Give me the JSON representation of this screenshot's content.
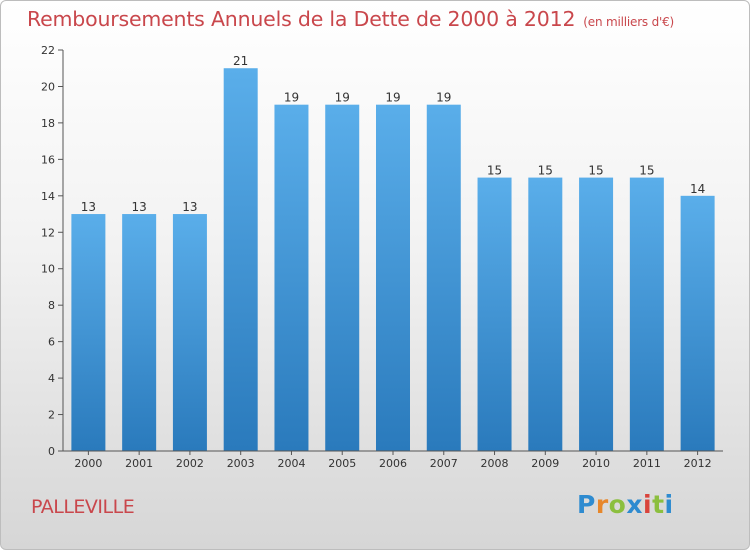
{
  "title": "Remboursements Annuels de la Dette de 2000 à 2012",
  "subtitle": "(en milliers d'€)",
  "town": "PALLEVILLE",
  "logo_text": "Proxiti",
  "colors": {
    "title": "#c9474c",
    "bar_top": "#5aaeea",
    "bar_bottom": "#2a7abc",
    "axis": "#555555",
    "grid": "#cccccc"
  },
  "chart_data": {
    "type": "bar",
    "title": "Remboursements Annuels de la Dette de 2000 à 2012",
    "xlabel": "",
    "ylabel": "",
    "categories": [
      "2000",
      "2001",
      "2002",
      "2003",
      "2004",
      "2005",
      "2006",
      "2007",
      "2008",
      "2009",
      "2010",
      "2011",
      "2012"
    ],
    "values": [
      13,
      13,
      13,
      21,
      19,
      19,
      19,
      19,
      15,
      15,
      15,
      15,
      14
    ],
    "ylim": [
      0,
      22
    ],
    "yticks": [
      0,
      2,
      4,
      6,
      8,
      10,
      12,
      14,
      16,
      18,
      20,
      22
    ],
    "grid": false,
    "legend": "none"
  }
}
